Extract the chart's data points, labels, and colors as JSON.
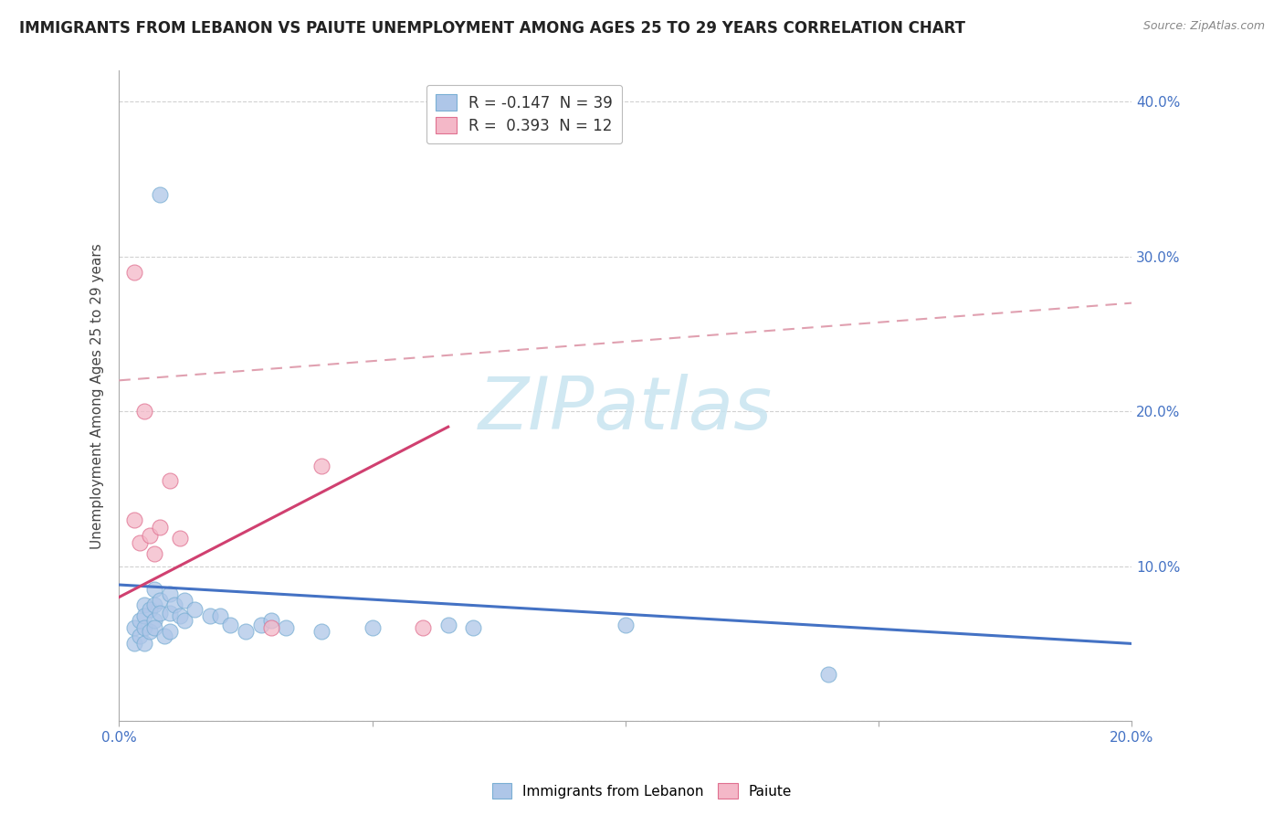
{
  "title": "IMMIGRANTS FROM LEBANON VS PAIUTE UNEMPLOYMENT AMONG AGES 25 TO 29 YEARS CORRELATION CHART",
  "source": "Source: ZipAtlas.com",
  "ylabel": "Unemployment Among Ages 25 to 29 years",
  "xlim": [
    0.0,
    0.2
  ],
  "ylim": [
    0.0,
    0.42
  ],
  "y_tick_positions": [
    0.0,
    0.1,
    0.2,
    0.3,
    0.4
  ],
  "y_tick_labels_right": [
    "",
    "10.0%",
    "20.0%",
    "30.0%",
    "40.0%"
  ],
  "x_tick_positions": [
    0.0,
    0.05,
    0.1,
    0.15,
    0.2
  ],
  "x_tick_labels": [
    "0.0%",
    "",
    "",
    "",
    "20.0%"
  ],
  "legend_entries": [
    {
      "label": "R = -0.147  N = 39",
      "facecolor": "#aec6e8",
      "edgecolor": "#7aafd4"
    },
    {
      "label": "R =  0.393  N = 12",
      "facecolor": "#f4b8c8",
      "edgecolor": "#e07090"
    }
  ],
  "legend_labels": [
    "Immigrants from Lebanon",
    "Paiute"
  ],
  "blue_scatter": [
    [
      0.003,
      0.06
    ],
    [
      0.003,
      0.05
    ],
    [
      0.004,
      0.065
    ],
    [
      0.004,
      0.055
    ],
    [
      0.005,
      0.075
    ],
    [
      0.005,
      0.068
    ],
    [
      0.005,
      0.06
    ],
    [
      0.005,
      0.05
    ],
    [
      0.006,
      0.072
    ],
    [
      0.006,
      0.058
    ],
    [
      0.007,
      0.085
    ],
    [
      0.007,
      0.075
    ],
    [
      0.007,
      0.065
    ],
    [
      0.007,
      0.06
    ],
    [
      0.008,
      0.078
    ],
    [
      0.008,
      0.07
    ],
    [
      0.009,
      0.055
    ],
    [
      0.01,
      0.082
    ],
    [
      0.01,
      0.07
    ],
    [
      0.01,
      0.058
    ],
    [
      0.011,
      0.075
    ],
    [
      0.012,
      0.068
    ],
    [
      0.013,
      0.078
    ],
    [
      0.013,
      0.065
    ],
    [
      0.015,
      0.072
    ],
    [
      0.018,
      0.068
    ],
    [
      0.02,
      0.068
    ],
    [
      0.022,
      0.062
    ],
    [
      0.025,
      0.058
    ],
    [
      0.028,
      0.062
    ],
    [
      0.03,
      0.065
    ],
    [
      0.033,
      0.06
    ],
    [
      0.04,
      0.058
    ],
    [
      0.05,
      0.06
    ],
    [
      0.065,
      0.062
    ],
    [
      0.07,
      0.06
    ],
    [
      0.1,
      0.062
    ],
    [
      0.14,
      0.03
    ],
    [
      0.008,
      0.34
    ]
  ],
  "pink_scatter": [
    [
      0.003,
      0.13
    ],
    [
      0.004,
      0.115
    ],
    [
      0.005,
      0.2
    ],
    [
      0.006,
      0.12
    ],
    [
      0.007,
      0.108
    ],
    [
      0.008,
      0.125
    ],
    [
      0.01,
      0.155
    ],
    [
      0.012,
      0.118
    ],
    [
      0.03,
      0.06
    ],
    [
      0.04,
      0.165
    ],
    [
      0.06,
      0.06
    ],
    [
      0.003,
      0.29
    ]
  ],
  "blue_line_x": [
    0.0,
    0.2
  ],
  "blue_line_y": [
    0.088,
    0.05
  ],
  "pink_solid_line_x": [
    0.0,
    0.065
  ],
  "pink_solid_line_y": [
    0.08,
    0.19
  ],
  "pink_dashed_line_x": [
    0.0,
    0.2
  ],
  "pink_dashed_line_y": [
    0.22,
    0.27
  ],
  "grid_color": "#cccccc",
  "background_color": "#ffffff",
  "scatter_blue_facecolor": "#aec6e8",
  "scatter_blue_edgecolor": "#7aafd4",
  "scatter_pink_facecolor": "#f4b8c8",
  "scatter_pink_edgecolor": "#e07090",
  "line_blue_color": "#4472c4",
  "line_pink_color": "#d04070",
  "line_pink_dashed_color": "#e0a0b0",
  "watermark_text": "ZIPatlas",
  "watermark_color": "#c8e4f0",
  "title_fontsize": 12,
  "tick_fontsize": 11,
  "ylabel_fontsize": 11
}
